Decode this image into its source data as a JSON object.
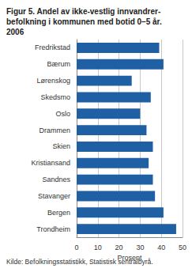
{
  "chart_data": {
    "type": "bar",
    "orientation": "horizontal",
    "title": "Figur 5. Andel av ikke-vestlig innvandrer-\nbefolkning i kommunen med botid 0–5 år.\n2006",
    "source": "Kilde: Befolkningsstatistikk, Statistisk sentralbyrå.",
    "xlabel": "Prosent",
    "categories": [
      "Fredrikstad",
      "Bærum",
      "Lørenskog",
      "Skedsmo",
      "Oslo",
      "Drammen",
      "Skien",
      "Kristiansand",
      "Sandnes",
      "Stavanger",
      "Bergen",
      "Trondheim"
    ],
    "values": [
      39,
      41,
      26,
      35,
      30,
      33,
      36,
      34,
      36,
      37,
      41,
      47
    ],
    "color": "#1f5fa3",
    "xlim": [
      0,
      50
    ],
    "xticks": [
      0,
      10,
      20,
      30,
      40,
      50
    ],
    "grid": true
  }
}
